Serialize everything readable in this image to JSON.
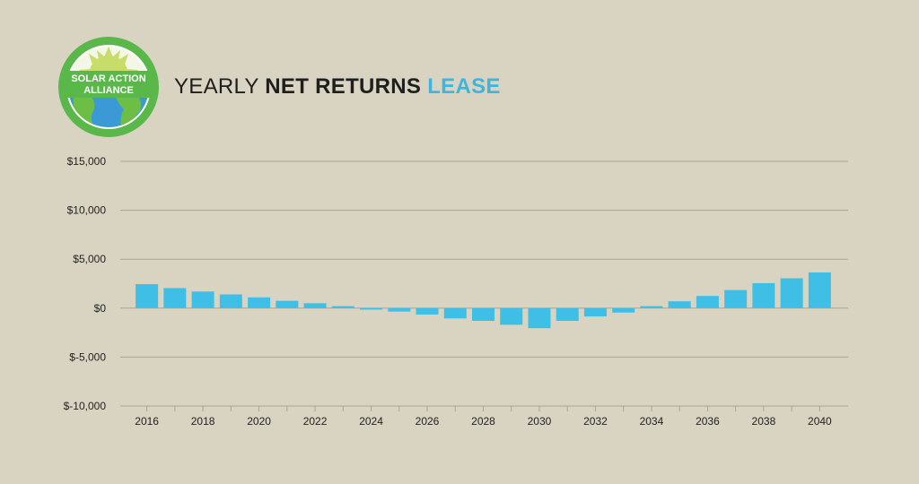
{
  "logo": {
    "line1": "SOLAR ACTION",
    "line2": "ALLIANCE",
    "ring_color": "#5ab84a",
    "sun_color": "#c8dc6a",
    "globe_color": "#3b9ad6",
    "land_color": "#6cbf44"
  },
  "title": {
    "part1": "YEARLY",
    "part2": "NET RETURNS",
    "part3": "LEASE",
    "accent_color": "#3fb4dc"
  },
  "chart_data": {
    "type": "bar",
    "title": "YEARLY NET RETURNS LEASE",
    "xlabel": "",
    "ylabel": "",
    "ylim": [
      -10000,
      15000
    ],
    "yticks": [
      15000,
      10000,
      5000,
      0,
      -5000,
      -10000
    ],
    "ytick_labels": [
      "$15,000",
      "$10,000",
      "$5,000",
      "$0",
      "$-5,000",
      "$-10,000"
    ],
    "categories": [
      "2016",
      "2017",
      "2018",
      "2019",
      "2020",
      "2021",
      "2022",
      "2023",
      "2024",
      "2025",
      "2026",
      "2027",
      "2028",
      "2029",
      "2030",
      "2031",
      "2032",
      "2033",
      "2034",
      "2035",
      "2036",
      "2037",
      "2038",
      "2039",
      "2040"
    ],
    "xtick_labels": [
      "2016",
      "2018",
      "2020",
      "2022",
      "2024",
      "2026",
      "2028",
      "2030",
      "2032",
      "2034",
      "2036",
      "2038",
      "2040"
    ],
    "values": [
      2450,
      2050,
      1700,
      1400,
      1100,
      750,
      500,
      200,
      -150,
      -350,
      -650,
      -1050,
      -1300,
      -1700,
      -2050,
      -1300,
      -850,
      -450,
      200,
      700,
      1250,
      1850,
      2550,
      3050,
      3650
    ],
    "grid": true,
    "bar_color": "#3fbfe6",
    "grid_color": "#aaa494"
  }
}
